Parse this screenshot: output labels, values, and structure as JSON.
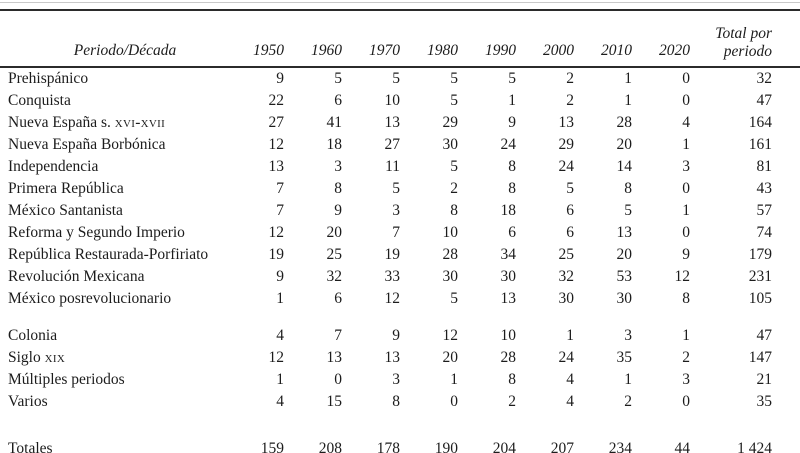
{
  "appearance": {
    "background": "#ffffff",
    "ink_color": "#1c1c1c",
    "rule_color": "#2b2b2b",
    "hairline_color": "#c9c9c9"
  },
  "table": {
    "header": {
      "period_column_label": "Periodo/Década",
      "decade_labels": [
        "1950",
        "1960",
        "1970",
        "1980",
        "1990",
        "2000",
        "2010",
        "2020"
      ],
      "total_column_label": "Total por\nperiodo"
    },
    "period_rows": [
      {
        "label": "Prehispánico",
        "values": [
          9,
          5,
          5,
          5,
          5,
          2,
          1,
          0
        ],
        "total": "32"
      },
      {
        "label": "Conquista",
        "values": [
          22,
          6,
          10,
          5,
          1,
          2,
          1,
          0
        ],
        "total": "47"
      },
      {
        "label": "Nueva España s. ",
        "label_smallcaps": "xvi-xvii",
        "values": [
          27,
          41,
          13,
          29,
          9,
          13,
          28,
          4
        ],
        "total": "164"
      },
      {
        "label": "Nueva España Borbónica",
        "values": [
          12,
          18,
          27,
          30,
          24,
          29,
          20,
          1
        ],
        "total": "161"
      },
      {
        "label": "Independencia",
        "values": [
          13,
          3,
          11,
          5,
          8,
          24,
          14,
          3
        ],
        "total": "81"
      },
      {
        "label": "Primera República",
        "values": [
          7,
          8,
          5,
          2,
          8,
          5,
          8,
          0
        ],
        "total": "43"
      },
      {
        "label": "México Santanista",
        "values": [
          7,
          9,
          3,
          8,
          18,
          6,
          5,
          1
        ],
        "total": "57"
      },
      {
        "label": "Reforma y Segundo Imperio",
        "values": [
          12,
          20,
          7,
          10,
          6,
          6,
          13,
          0
        ],
        "total": "74"
      },
      {
        "label": "República Restaurada-Porfiriato",
        "values": [
          19,
          25,
          19,
          28,
          34,
          25,
          20,
          9
        ],
        "total": "179"
      },
      {
        "label": "Revolución Mexicana",
        "values": [
          9,
          32,
          33,
          30,
          30,
          32,
          53,
          12
        ],
        "total": "231"
      },
      {
        "label": "México posrevolucionario",
        "values": [
          1,
          6,
          12,
          5,
          13,
          30,
          30,
          8
        ],
        "total": "105"
      }
    ],
    "grouped_rows": [
      {
        "label": "Colonia",
        "values": [
          4,
          7,
          9,
          12,
          10,
          1,
          3,
          1
        ],
        "total": "47"
      },
      {
        "label": "Siglo ",
        "label_smallcaps": "xix",
        "values": [
          12,
          13,
          13,
          20,
          28,
          24,
          35,
          2
        ],
        "total": "147"
      },
      {
        "label": "Múltiples periodos",
        "values": [
          1,
          0,
          3,
          1,
          8,
          4,
          1,
          3
        ],
        "total": "21"
      },
      {
        "label": "Varios",
        "values": [
          4,
          15,
          8,
          0,
          2,
          4,
          2,
          0
        ],
        "total": "35"
      }
    ],
    "totals_row": {
      "label": "Totales",
      "values": [
        159,
        208,
        178,
        190,
        204,
        207,
        234,
        44
      ],
      "total": "1 424"
    }
  }
}
